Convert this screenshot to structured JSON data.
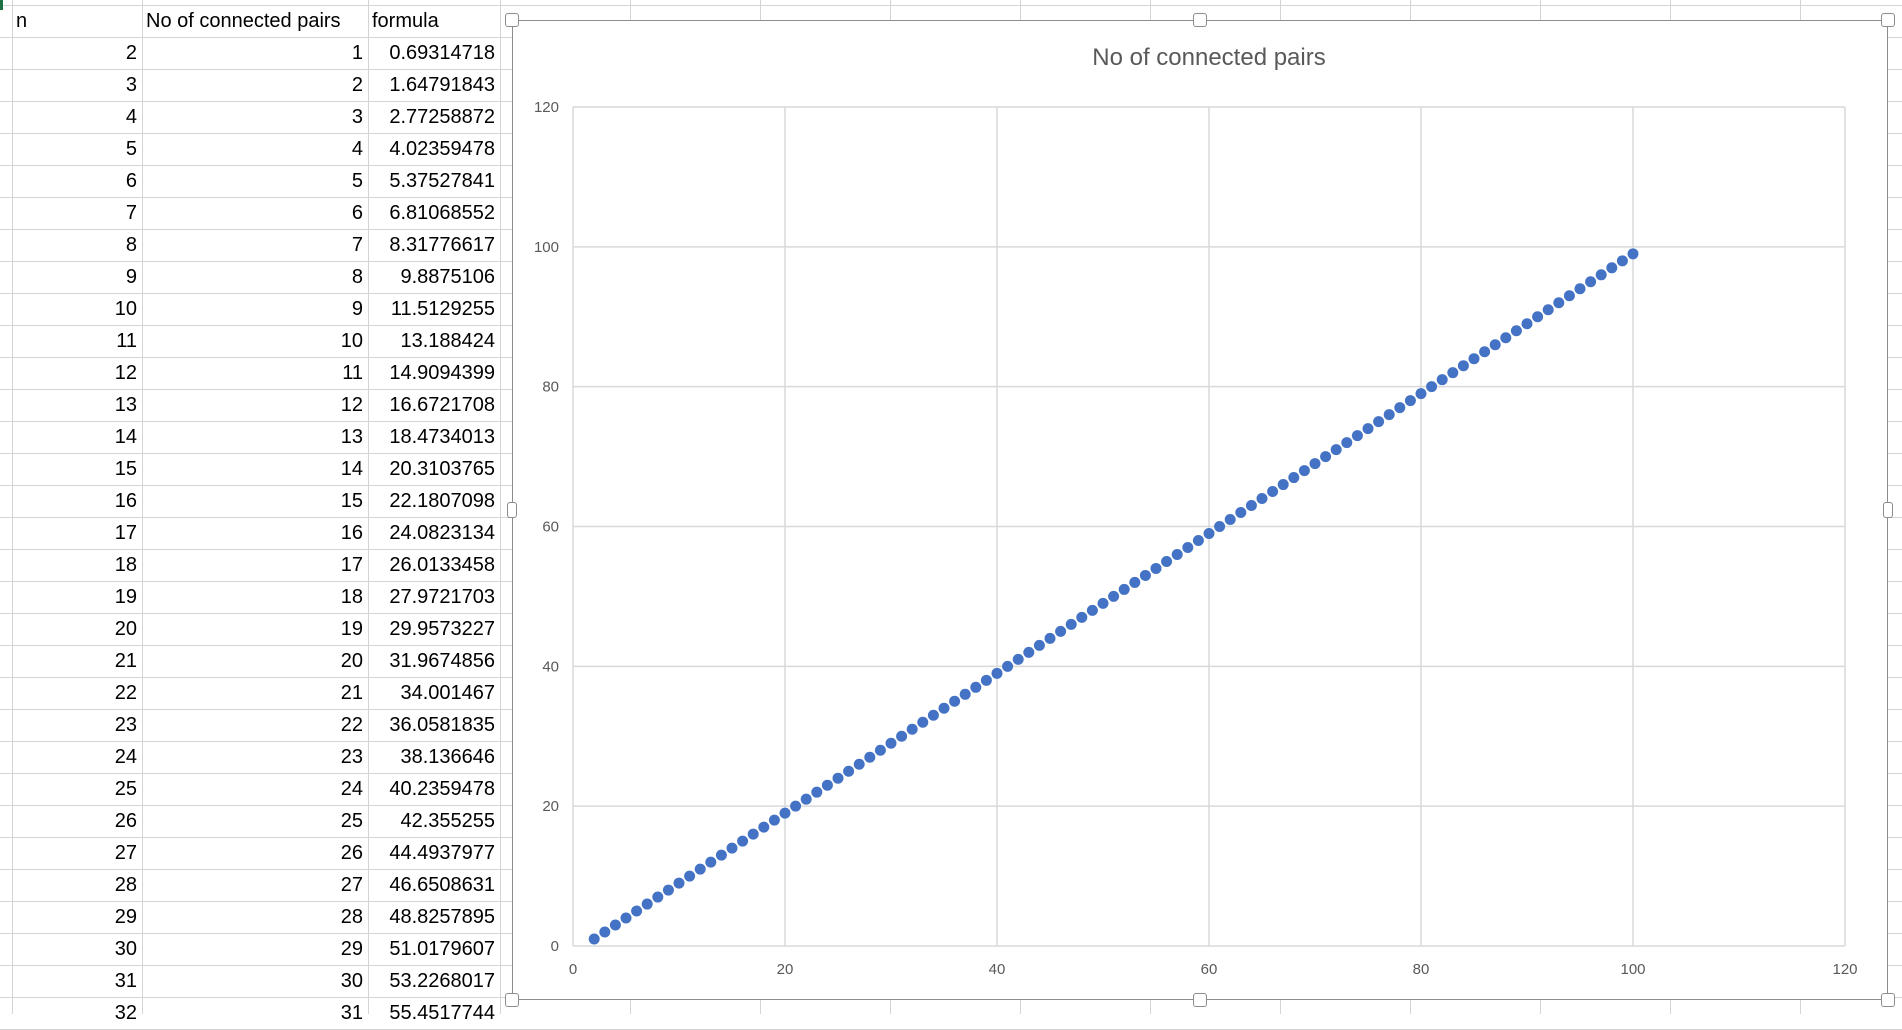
{
  "sheet": {
    "headers": [
      "n",
      "No of connected pairs",
      "formula"
    ],
    "rows": [
      [
        "2",
        "1",
        "0.69314718"
      ],
      [
        "3",
        "2",
        "1.64791843"
      ],
      [
        "4",
        "3",
        "2.77258872"
      ],
      [
        "5",
        "4",
        "4.02359478"
      ],
      [
        "6",
        "5",
        "5.37527841"
      ],
      [
        "7",
        "6",
        "6.81068552"
      ],
      [
        "8",
        "7",
        "8.31776617"
      ],
      [
        "9",
        "8",
        "9.8875106"
      ],
      [
        "10",
        "9",
        "11.5129255"
      ],
      [
        "11",
        "10",
        "13.188424"
      ],
      [
        "12",
        "11",
        "14.9094399"
      ],
      [
        "13",
        "12",
        "16.6721708"
      ],
      [
        "14",
        "13",
        "18.4734013"
      ],
      [
        "15",
        "14",
        "20.3103765"
      ],
      [
        "16",
        "15",
        "22.1807098"
      ],
      [
        "17",
        "16",
        "24.0823134"
      ],
      [
        "18",
        "17",
        "26.0133458"
      ],
      [
        "19",
        "18",
        "27.9721703"
      ],
      [
        "20",
        "19",
        "29.9573227"
      ],
      [
        "21",
        "20",
        "31.9674856"
      ],
      [
        "22",
        "21",
        "34.001467"
      ],
      [
        "23",
        "22",
        "36.0581835"
      ],
      [
        "24",
        "23",
        "38.136646"
      ],
      [
        "25",
        "24",
        "40.2359478"
      ],
      [
        "26",
        "25",
        "42.355255"
      ],
      [
        "27",
        "26",
        "44.4937977"
      ],
      [
        "28",
        "27",
        "46.6508631"
      ],
      [
        "29",
        "28",
        "48.8257895"
      ],
      [
        "30",
        "29",
        "51.0179607"
      ],
      [
        "31",
        "30",
        "53.2268017"
      ],
      [
        "32",
        "31",
        "55.4517744"
      ]
    ]
  },
  "chart_data": {
    "type": "scatter",
    "title": "No of connected pairs",
    "xlabel": "",
    "ylabel": "",
    "xlim": [
      0,
      120
    ],
    "ylim": [
      0,
      120
    ],
    "x_ticks": [
      0,
      20,
      40,
      60,
      80,
      100,
      120
    ],
    "y_ticks": [
      0,
      20,
      40,
      60,
      80,
      100,
      120
    ],
    "grid": true,
    "legend": "none",
    "series": [
      {
        "x": [
          2,
          3,
          4,
          5,
          6,
          7,
          8,
          9,
          10,
          11,
          12,
          13,
          14,
          15,
          16,
          17,
          18,
          19,
          20,
          21,
          22,
          23,
          24,
          25,
          26,
          27,
          28,
          29,
          30,
          31,
          32,
          33,
          34,
          35,
          36,
          37,
          38,
          39,
          40,
          41,
          42,
          43,
          44,
          45,
          46,
          47,
          48,
          49,
          50,
          51,
          52,
          53,
          54,
          55,
          56,
          57,
          58,
          59,
          60,
          61,
          62,
          63,
          64,
          65,
          66,
          67,
          68,
          69,
          70,
          71,
          72,
          73,
          74,
          75,
          76,
          77,
          78,
          79,
          80,
          81,
          82,
          83,
          84,
          85,
          86,
          87,
          88,
          89,
          90,
          91,
          92,
          93,
          94,
          95,
          96,
          97,
          98,
          99,
          100
        ],
        "y": [
          1,
          2,
          3,
          4,
          5,
          6,
          7,
          8,
          9,
          10,
          11,
          12,
          13,
          14,
          15,
          16,
          17,
          18,
          19,
          20,
          21,
          22,
          23,
          24,
          25,
          26,
          27,
          28,
          29,
          30,
          31,
          32,
          33,
          34,
          35,
          36,
          37,
          38,
          39,
          40,
          41,
          42,
          43,
          44,
          45,
          46,
          47,
          48,
          49,
          50,
          51,
          52,
          53,
          54,
          55,
          56,
          57,
          58,
          59,
          60,
          61,
          62,
          63,
          64,
          65,
          66,
          67,
          68,
          69,
          70,
          71,
          72,
          73,
          74,
          75,
          76,
          77,
          78,
          79,
          80,
          81,
          82,
          83,
          84,
          85,
          86,
          87,
          88,
          89,
          90,
          91,
          92,
          93,
          94,
          95,
          96,
          97,
          98,
          99
        ],
        "color": "#4472c4"
      }
    ]
  },
  "colors": {
    "grid": "#d9d9d9",
    "cell_border": "#d4d4d4",
    "axis_text": "#595959",
    "title_text": "#595959",
    "marker": "#4472c4",
    "selection_border": "#8c8c8c"
  }
}
